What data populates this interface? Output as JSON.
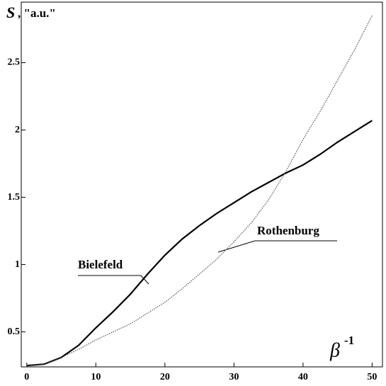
{
  "chart_data": {
    "type": "line",
    "ylabel": "S",
    "ylabel_unit": ", \"a.u.\"",
    "xlabel": "β",
    "xlabel_exp": "-1",
    "x": [
      0,
      2.5,
      5,
      7.5,
      10,
      12.5,
      15,
      17.5,
      20,
      22.5,
      25,
      27.5,
      30,
      32.5,
      35,
      37.5,
      40,
      42.5,
      45,
      47.5,
      50
    ],
    "series": [
      {
        "name": "Bielefeld",
        "color": "#000000",
        "style": "solid",
        "values": [
          0.25,
          0.26,
          0.31,
          0.4,
          0.53,
          0.65,
          0.78,
          0.93,
          1.07,
          1.19,
          1.29,
          1.38,
          1.46,
          1.54,
          1.61,
          1.68,
          1.74,
          1.82,
          1.91,
          1.99,
          2.07
        ]
      },
      {
        "name": "Rothenburg",
        "color": "#555555",
        "style": "dotted",
        "values": [
          0.25,
          0.26,
          0.31,
          0.37,
          0.44,
          0.5,
          0.56,
          0.64,
          0.72,
          0.82,
          0.93,
          1.04,
          1.17,
          1.31,
          1.48,
          1.69,
          1.93,
          2.14,
          2.37,
          2.6,
          2.85
        ]
      }
    ],
    "xlim": [
      -0.8,
      51.5
    ],
    "ylim": [
      0.24,
      2.95
    ],
    "xticks": [
      0,
      10,
      20,
      30,
      40,
      50
    ],
    "yticks": [
      0.5,
      1,
      1.5,
      2,
      2.5
    ]
  }
}
